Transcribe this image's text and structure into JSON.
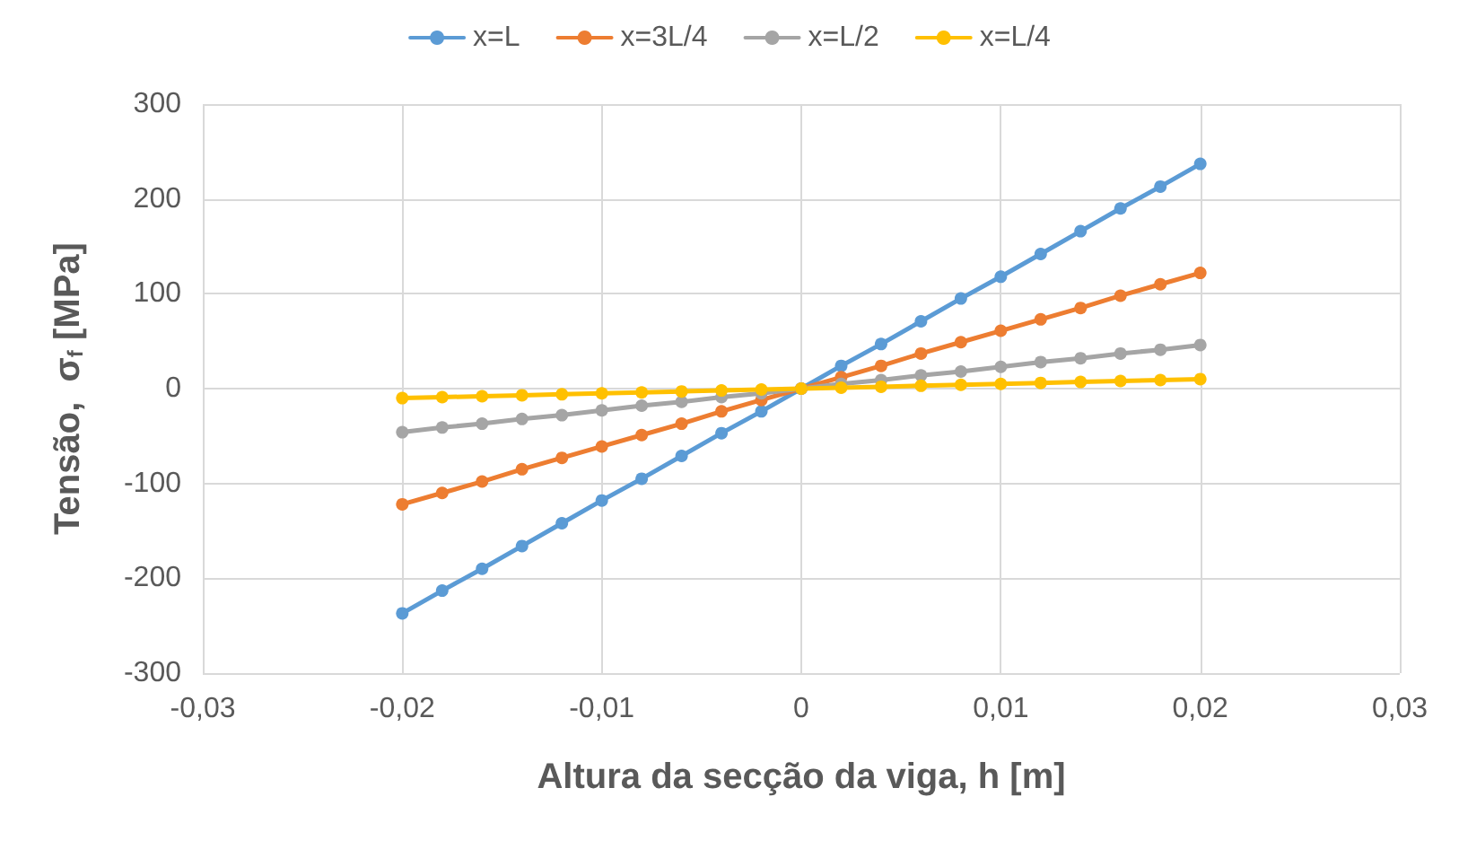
{
  "chart_data": {
    "type": "line",
    "xlabel": "Altura da secção da viga, h [m]",
    "ylabel": "Tensão,  σ$_{f}$ [MPa]",
    "x": [
      -0.02,
      -0.018,
      -0.016,
      -0.014,
      -0.012,
      -0.01,
      -0.008,
      -0.006,
      -0.004,
      -0.002,
      0,
      0.002,
      0.004,
      0.006,
      0.008,
      0.01,
      0.012,
      0.014,
      0.016,
      0.018,
      0.02
    ],
    "series": [
      {
        "name": "x=L",
        "color": "#5b9bd5",
        "values": [
          -237,
          -213,
          -190,
          -166,
          -142,
          -118,
          -95,
          -71,
          -47,
          -24,
          0,
          24,
          47,
          71,
          95,
          118,
          142,
          166,
          190,
          213,
          237
        ]
      },
      {
        "name": "x=3L/4",
        "color": "#ed7d31",
        "values": [
          -122,
          -110,
          -98,
          -85,
          -73,
          -61,
          -49,
          -37,
          -24,
          -12,
          0,
          12,
          24,
          37,
          49,
          61,
          73,
          85,
          98,
          110,
          122
        ]
      },
      {
        "name": "x=L/2",
        "color": "#a5a5a5",
        "values": [
          -46,
          -41,
          -37,
          -32,
          -28,
          -23,
          -18,
          -14,
          -9,
          -5,
          0,
          5,
          9,
          14,
          18,
          23,
          28,
          32,
          37,
          41,
          46
        ]
      },
      {
        "name": "x=L/4",
        "color": "#ffc000",
        "values": [
          -10,
          -9,
          -8,
          -7,
          -6,
          -5,
          -4,
          -3,
          -2,
          -1,
          0,
          1,
          2,
          3,
          4,
          5,
          6,
          7,
          8,
          9,
          10
        ]
      }
    ],
    "xlim": [
      -0.03,
      0.03
    ],
    "xticks": [
      {
        "value": -0.03,
        "label": "-0,03"
      },
      {
        "value": -0.02,
        "label": "-0,02"
      },
      {
        "value": -0.01,
        "label": "-0,01"
      },
      0,
      {
        "value": 0.01,
        "label": "0,01"
      },
      {
        "value": 0.02,
        "label": "0,02"
      },
      {
        "value": 0.03,
        "label": "0,03"
      }
    ],
    "ylim": [
      -300,
      300
    ],
    "yticks": [
      -300,
      -200,
      -100,
      0,
      100,
      200,
      300
    ],
    "grid": true,
    "legend": "top",
    "marker": "circle",
    "line_style": "solid"
  }
}
